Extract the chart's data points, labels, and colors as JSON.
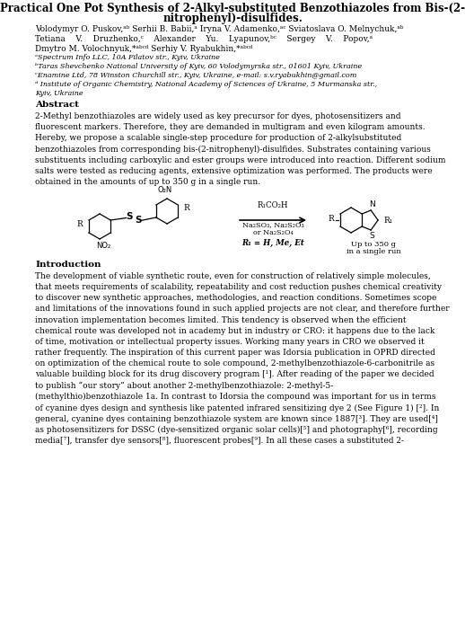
{
  "title_line1": "Practical One Pot Synthesis of 2-Alkyl-substituted Benzothiazoles from Bis-(2-",
  "title_line2": "nitrophenyl)-disulfides.",
  "authors_line1": "Volodymyr O. Puskov,ᵃᵇ Serhii B. Babii,ᵃ Iryna V. Adamenko,ᵃᶜ Sviatoslava O. Melnychuk,ᵃᵇ",
  "authors_line2": "Tetiana    V.    Druzhenko,ᶜ    Alexander    Yu.    Lyapunov,ᵇᶜ    Sergey    V.    Popov,ᵃ",
  "authors_line3": "Dmytro M. Volochnyuk,*ᵃᵇᶜᵈ Serhiy V. Ryabukhin,*ᵃᵇᶜᵈ",
  "affil_a": "ᵃSpectrum Info LLC, 10A Filatov str., Kyiv, Ukraine",
  "affil_b": "ᵇTaras Shevchenko National University of Kyiv, 60 Volodymyrska str., 01601 Kyiv, Ukraine",
  "affil_c": "ᶜEnamine Ltd, 78 Winston Churchill str., Kyiv, Ukraine, e-mail: s.v.ryabukhin@gmail.com",
  "affil_d": "ᵈ Institute of Organic Chemistry, National Academy of Sciences of Ukraine, 5 Murmanska str.,",
  "affil_d2": "Kyiv, Ukraine",
  "abstract_title": "Abstract",
  "abstract_text": "2-Methyl benzothiazoles are widely used as key precursor for dyes, photosensitizers and\nfluorescent markers. Therefore, they are demanded in multigram and even kilogram amounts.\nHereby, we propose a scalable single-step procedure for production of 2-alkylsubstituted\nbenzothiazoles from corresponding bis-(2-nitrophenyl)-disulfides. Substrates containing various\nsubstituents including carboxylic and ester groups were introduced into reaction. Different sodium\nsalts were tested as reducing agents, extensive optimization was performed. The products were\nobtained in the amounts of up to 350 g in a single run.",
  "intro_title": "Introduction",
  "intro_text": "The development of viable synthetic route, even for construction of relatively simple molecules,\nthat meets requirements of scalability, repeatability and cost reduction pushes chemical creativity\nto discover new synthetic approaches, methodologies, and reaction conditions. Sometimes scope\nand limitations of the innovations found in such applied projects are not clear, and therefore further\ninnovation implementation becomes limited. This tendency is observed when the efficient\nchemical route was developed not in academy but in industry or CRO: it happens due to the lack\nof time, motivation or intellectual property issues. Working many years in CRO we observed it\nrather frequently. The inspiration of this current paper was Idorsia publication in OPRD directed\non optimization of the chemical route to sole compound, 2-methylbenzothiazole-6-carbonitrile as\nvaluable building block for its drug discovery program [¹]. After reading of the paper we decided\nto publish “our story” about another 2-methylbenzothiazole: 2-methyl-5-\n(methylthio)benzothiazole 1a. In contrast to Idorsia the compound was important for us in terms\nof cyanine dyes design and synthesis like patented infrared sensitizing dye 2 (See Figure 1) [²]. In\ngeneral, cyanine dyes containing benzothiazole system are known since 1887[³]. They are used[⁴]\nas photosensitizers for DSSC (dye-sensitized organic solar cells)[⁵] and photography[⁶], recording\nmedia[⁷], transfer dye sensors[⁸], fluorescent probes[⁹]. In all these cases a substituted 2-",
  "bg_color": "#ffffff"
}
